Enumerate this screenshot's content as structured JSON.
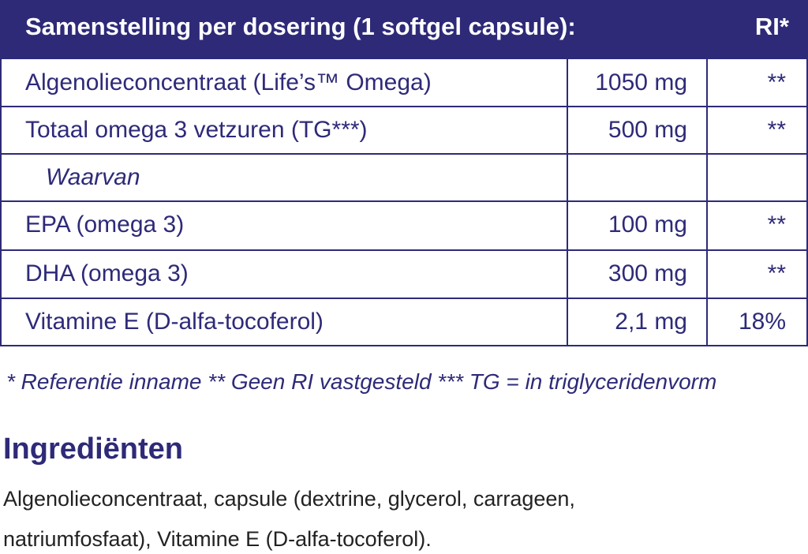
{
  "table": {
    "header": [
      "Samenstelling per dosering (1 softgel capsule):",
      "RI*"
    ],
    "rows": [
      [
        "Algenolieconcentraat (Life’s™ Omega)",
        "1050 mg",
        "**"
      ],
      [
        "Totaal omega 3 vetzuren (TG***)",
        "500 mg",
        "**"
      ],
      [
        "Waarvan"
      ],
      [
        "EPA (omega 3)",
        "100 mg",
        "**"
      ],
      [
        "DHA (omega 3)",
        "300 mg",
        "**"
      ],
      [
        "Vitamine E (D-alfa-tocoferol)",
        "2,1 mg",
        "18%"
      ]
    ]
  },
  "footnote": "* Referentie inname  ** Geen RI vastgesteld *** TG = in triglyceridenvorm",
  "ingredients": {
    "title": "Ingrediënten",
    "lines": [
      "Algenolieconcentraat, capsule (dextrine, glycerol, carrageen,",
      "natriumfosfaat), Vitamine E (D-alfa-tocoferol)."
    ]
  }
}
